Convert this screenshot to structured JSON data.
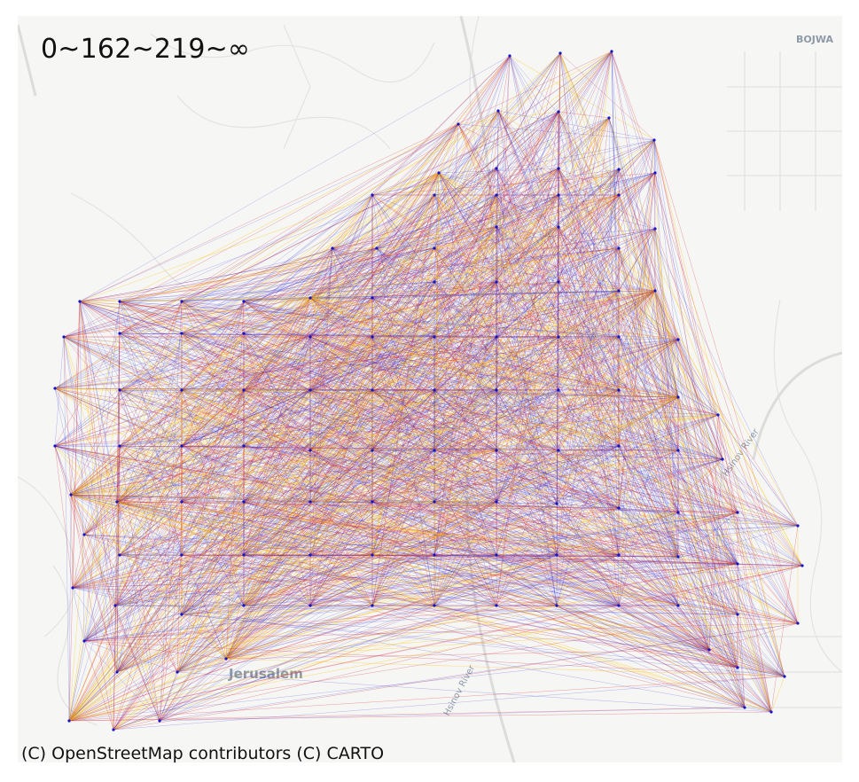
{
  "map": {
    "legend_text": "0~162~219~∞",
    "attribution": "(C) OpenStreetMap contributors (C) CARTO",
    "place_labels": {
      "city": "Jerusalem",
      "corner": "BOJWA",
      "river_left": "Hsinov River",
      "river_right": "Hsinov River"
    },
    "basemap_style": "light-gray",
    "edge_color_classes": [
      {
        "range": "0~162",
        "color": "#1f1fd6"
      },
      {
        "range": "162~219",
        "color": "#d42a3c"
      },
      {
        "range": "219~∞",
        "color": "#ffc400"
      }
    ],
    "node_color": "#1414c8"
  }
}
